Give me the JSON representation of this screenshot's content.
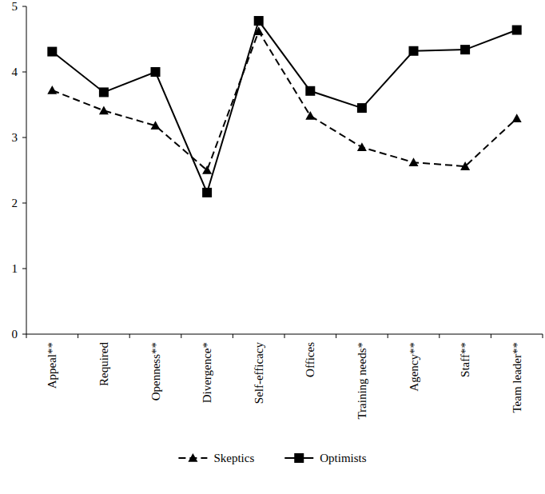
{
  "chart_data": {
    "type": "line",
    "categories": [
      "Appeal**",
      "Required",
      "Openness**",
      "Divergence*",
      "Self-efficacy",
      "Offices",
      "Training needs*",
      "Agency**",
      "Staff**",
      "Team leader**"
    ],
    "series": [
      {
        "name": "Skeptics",
        "color": "#000000",
        "marker": "triangle",
        "line_style": "dashed",
        "values": [
          3.72,
          3.41,
          3.18,
          2.5,
          4.62,
          3.33,
          2.85,
          2.62,
          2.56,
          3.29
        ]
      },
      {
        "name": "Optimists",
        "color": "#000000",
        "marker": "square",
        "line_style": "solid",
        "values": [
          4.31,
          3.69,
          4.0,
          2.16,
          4.78,
          3.71,
          3.45,
          4.32,
          4.34,
          4.64
        ]
      }
    ],
    "ylim": [
      0,
      5
    ],
    "yticks": [
      0,
      1,
      2,
      3,
      4,
      5
    ],
    "grid": false,
    "legend": "bottom"
  }
}
